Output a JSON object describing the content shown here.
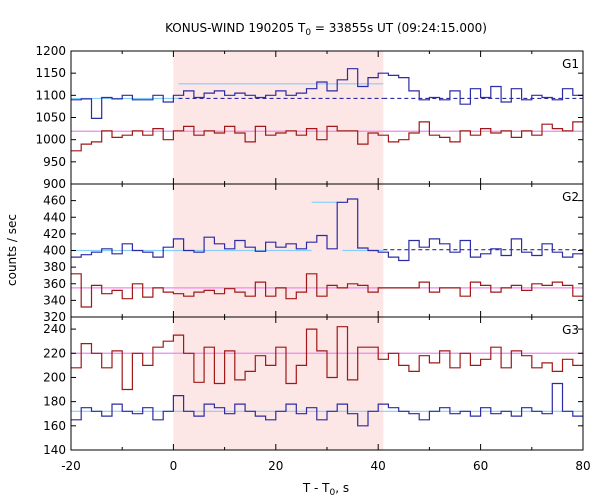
{
  "chart_data": {
    "type": "line",
    "title": "KONUS-WIND 190205 T",
    "title_sub": "0",
    "title_rest": " = 33855s UT (09:24:15.000)",
    "xlabel": "T - T",
    "xlabel_sub": "0",
    "xlabel_rest": ", s",
    "ylabel": "counts / sec",
    "xlim": [
      -20,
      80
    ],
    "xticks": [
      "-20",
      "0",
      "20",
      "40",
      "60",
      "80"
    ],
    "highlight_interval": [
      0,
      41
    ],
    "colors": {
      "high": "#2c2ca4",
      "high_fit": "#87cefa",
      "low": "#a01818",
      "low_fit": "#ee88ee",
      "highlight": "#fde6e6"
    },
    "panels": [
      {
        "label": "G1",
        "ylim": [
          900,
          1200
        ],
        "yticks": [
          "900",
          "950",
          "1000",
          "1050",
          "1100",
          "1150",
          "1200"
        ],
        "high_series": {
          "x_start": -20,
          "dt": 2,
          "values": [
            1090,
            1092,
            1048,
            1095,
            1092,
            1100,
            1090,
            1090,
            1100,
            1085,
            1100,
            1110,
            1095,
            1105,
            1110,
            1100,
            1105,
            1100,
            1095,
            1100,
            1110,
            1100,
            1105,
            1115,
            1130,
            1110,
            1135,
            1160,
            1120,
            1140,
            1150,
            1145,
            1140,
            1110,
            1090,
            1095,
            1090,
            1110,
            1080,
            1115,
            1095,
            1120,
            1085,
            1115,
            1090,
            1100,
            1095,
            1090,
            1115,
            1100
          ],
          "fit_segments": [
            {
              "x": [
                -20,
                1
              ],
              "y": [
                1093,
                1093
              ],
              "style": "solid"
            },
            {
              "x": [
                1,
                41
              ],
              "y": [
                1126,
                1126
              ],
              "style": "solid"
            },
            {
              "x": [
                1,
                41
              ],
              "y": [
                1093,
                1093
              ],
              "style": "dashed"
            },
            {
              "x": [
                41,
                80
              ],
              "y": [
                1093,
                1093
              ],
              "style": "dashed"
            }
          ]
        },
        "low_series": {
          "x_start": -20,
          "dt": 2,
          "values": [
            975,
            990,
            995,
            1020,
            1005,
            1010,
            1020,
            1010,
            1025,
            1000,
            1020,
            1030,
            1010,
            1020,
            1015,
            1030,
            1015,
            995,
            1030,
            1010,
            1015,
            1020,
            1010,
            1025,
            1000,
            1030,
            1020,
            1020,
            990,
            1015,
            1010,
            995,
            1000,
            1015,
            1040,
            1010,
            1005,
            995,
            1020,
            1010,
            1025,
            1015,
            1020,
            1005,
            1020,
            1010,
            1035,
            1025,
            1020,
            1040
          ],
          "fit_segments": [
            {
              "x": [
                -20,
                80
              ],
              "y": [
                1019,
                1019
              ],
              "style": "solid"
            }
          ]
        }
      },
      {
        "label": "G2",
        "ylim": [
          320,
          480
        ],
        "yticks": [
          "320",
          "340",
          "360",
          "380",
          "400",
          "420",
          "440",
          "460"
        ],
        "high_series": {
          "x_start": -20,
          "dt": 2,
          "values": [
            392,
            395,
            398,
            402,
            396,
            408,
            400,
            398,
            392,
            404,
            414,
            400,
            398,
            416,
            408,
            402,
            412,
            404,
            399,
            410,
            404,
            408,
            402,
            410,
            418,
            402,
            458,
            462,
            403,
            400,
            398,
            392,
            388,
            412,
            404,
            414,
            408,
            398,
            412,
            392,
            396,
            402,
            394,
            414,
            398,
            394,
            408,
            398,
            392,
            396
          ],
          "fit_segments": [
            {
              "x": [
                -20,
                27
              ],
              "y": [
                400,
                400
              ],
              "style": "solid"
            },
            {
              "x": [
                27,
                33
              ],
              "y": [
                458,
                458
              ],
              "style": "solid"
            },
            {
              "x": [
                33,
                41
              ],
              "y": [
                400,
                400
              ],
              "style": "solid"
            },
            {
              "x": [
                41,
                80
              ],
              "y": [
                401,
                401
              ],
              "style": "dashed"
            }
          ]
        },
        "low_series": {
          "x_start": -20,
          "dt": 2,
          "values": [
            372,
            332,
            358,
            348,
            352,
            342,
            360,
            344,
            355,
            350,
            348,
            345,
            350,
            352,
            348,
            354,
            350,
            345,
            362,
            345,
            355,
            342,
            350,
            372,
            345,
            358,
            355,
            360,
            358,
            350,
            355,
            355,
            355,
            355,
            362,
            350,
            355,
            355,
            345,
            362,
            358,
            350,
            355,
            358,
            352,
            360,
            358,
            362,
            358,
            345
          ],
          "fit_segments": [
            {
              "x": [
                -20,
                80
              ],
              "y": [
                355,
                355
              ],
              "style": "solid"
            }
          ]
        }
      },
      {
        "label": "G3",
        "ylim": [
          140,
          250
        ],
        "yticks": [
          "140",
          "160",
          "180",
          "200",
          "220",
          "240"
        ],
        "high_series": {
          "x_start": -20,
          "dt": 2,
          "values": [
            165,
            175,
            172,
            168,
            178,
            172,
            170,
            175,
            165,
            172,
            185,
            172,
            168,
            178,
            175,
            170,
            178,
            172,
            168,
            165,
            172,
            178,
            170,
            175,
            165,
            172,
            178,
            170,
            160,
            172,
            178,
            175,
            172,
            170,
            165,
            172,
            175,
            170,
            172,
            168,
            175,
            170,
            172,
            168,
            175,
            172,
            170,
            195,
            172,
            168
          ],
          "fit_segments": [
            {
              "x": [
                -20,
                80
              ],
              "y": [
                172,
                172
              ],
              "style": "solid"
            }
          ]
        },
        "low_series": {
          "x_start": -20,
          "dt": 2,
          "values": [
            208,
            228,
            220,
            208,
            222,
            190,
            220,
            210,
            225,
            230,
            235,
            220,
            196,
            225,
            195,
            222,
            198,
            205,
            218,
            210,
            225,
            195,
            210,
            240,
            222,
            200,
            242,
            198,
            225,
            225,
            215,
            220,
            210,
            205,
            218,
            212,
            222,
            208,
            220,
            210,
            215,
            225,
            208,
            222,
            218,
            208,
            212,
            205,
            215,
            210
          ],
          "fit_segments": [
            {
              "x": [
                -20,
                80
              ],
              "y": [
                220,
                220
              ],
              "style": "solid"
            }
          ]
        }
      }
    ]
  }
}
